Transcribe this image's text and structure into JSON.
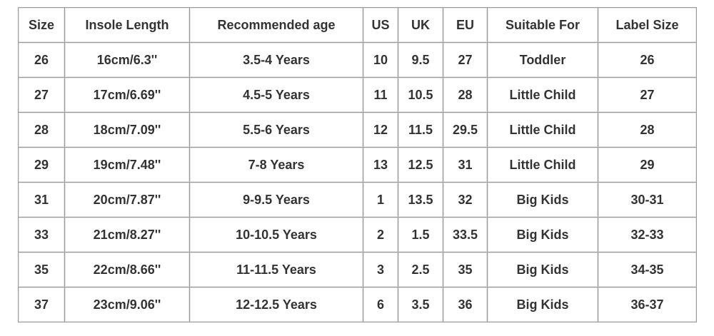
{
  "table": {
    "header": [
      "Size",
      "Insole Length",
      "Recommended age",
      "US",
      "UK",
      "EU",
      "Suitable For",
      "Label Size"
    ],
    "rows": [
      [
        "26",
        "16cm/6.3''",
        "3.5-4 Years",
        "10",
        "9.5",
        "27",
        "Toddler",
        "26"
      ],
      [
        "27",
        "17cm/6.69''",
        "4.5-5 Years",
        "11",
        "10.5",
        "28",
        "Little Child",
        "27"
      ],
      [
        "28",
        "18cm/7.09''",
        "5.5-6 Years",
        "12",
        "11.5",
        "29.5",
        "Little Child",
        "28"
      ],
      [
        "29",
        "19cm/7.48''",
        "7-8 Years",
        "13",
        "12.5",
        "31",
        "Little Child",
        "29"
      ],
      [
        "31",
        "20cm/7.87''",
        "9-9.5 Years",
        "1",
        "13.5",
        "32",
        "Big Kids",
        "30-31"
      ],
      [
        "33",
        "21cm/8.27''",
        "10-10.5 Years",
        "2",
        "1.5",
        "33.5",
        "Big Kids",
        "32-33"
      ],
      [
        "35",
        "22cm/8.66''",
        "11-11.5 Years",
        "3",
        "2.5",
        "35",
        "Big Kids",
        "34-35"
      ],
      [
        "37",
        "23cm/9.06''",
        "12-12.5 Years",
        "6",
        "3.5",
        "36",
        "Big Kids",
        "36-37"
      ]
    ]
  }
}
